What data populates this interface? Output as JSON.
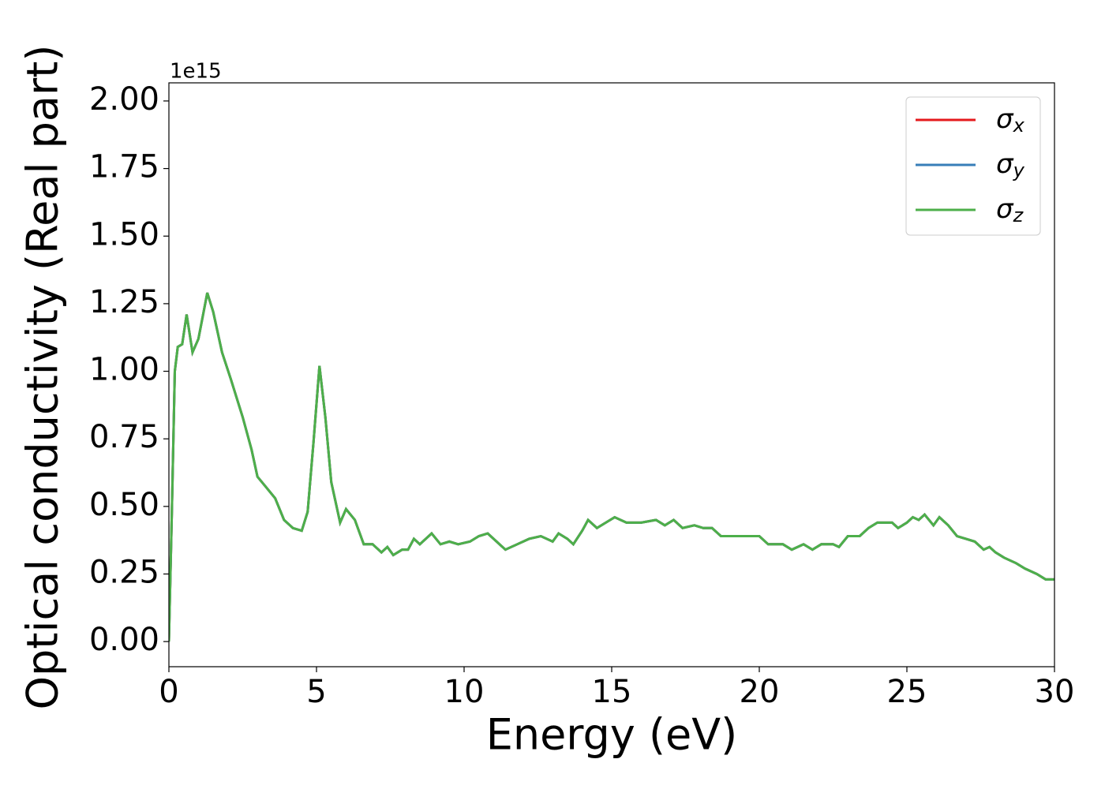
{
  "chart_data": {
    "type": "line",
    "xlabel": "Energy (eV)",
    "ylabel": "Optical conductivity (Real part)",
    "y_offset_text": "1e15",
    "x": [
      0,
      0.1,
      0.2,
      0.3,
      0.45,
      0.6,
      0.8,
      1.0,
      1.3,
      1.5,
      1.8,
      2.1,
      2.5,
      2.8,
      3.0,
      3.3,
      3.6,
      3.9,
      4.2,
      4.5,
      4.7,
      4.9,
      5.1,
      5.3,
      5.5,
      5.8,
      6.0,
      6.3,
      6.6,
      6.9,
      7.2,
      7.4,
      7.6,
      7.9,
      8.1,
      8.3,
      8.5,
      8.9,
      9.2,
      9.5,
      9.8,
      10.2,
      10.5,
      10.8,
      11.1,
      11.4,
      11.8,
      12.2,
      12.6,
      13.0,
      13.2,
      13.5,
      13.7,
      14.0,
      14.2,
      14.5,
      14.8,
      15.1,
      15.5,
      16.0,
      16.5,
      16.8,
      17.1,
      17.4,
      17.8,
      18.1,
      18.4,
      18.7,
      19.2,
      19.6,
      20.0,
      20.3,
      20.8,
      21.1,
      21.5,
      21.8,
      22.1,
      22.5,
      22.7,
      23.0,
      23.4,
      23.7,
      24.0,
      24.5,
      24.7,
      25.0,
      25.2,
      25.4,
      25.6,
      25.9,
      26.1,
      26.4,
      26.7,
      27.0,
      27.3,
      27.6,
      27.8,
      28.0,
      28.3,
      28.7,
      29.0,
      29.4,
      29.7,
      30.0
    ],
    "series": [
      {
        "name": "σx",
        "color": "#e41a1c",
        "values": [
          0,
          0.48,
          1.0,
          1.09,
          1.1,
          1.21,
          1.07,
          1.12,
          1.29,
          1.22,
          1.07,
          0.97,
          0.83,
          0.71,
          0.61,
          0.57,
          0.53,
          0.45,
          0.42,
          0.41,
          0.48,
          0.74,
          1.02,
          0.83,
          0.59,
          0.44,
          0.49,
          0.45,
          0.36,
          0.36,
          0.33,
          0.35,
          0.32,
          0.34,
          0.34,
          0.38,
          0.36,
          0.4,
          0.36,
          0.37,
          0.36,
          0.37,
          0.39,
          0.4,
          0.37,
          0.34,
          0.36,
          0.38,
          0.39,
          0.37,
          0.4,
          0.38,
          0.36,
          0.41,
          0.45,
          0.42,
          0.44,
          0.46,
          0.44,
          0.44,
          0.45,
          0.43,
          0.45,
          0.42,
          0.43,
          0.42,
          0.42,
          0.39,
          0.39,
          0.39,
          0.39,
          0.36,
          0.36,
          0.34,
          0.36,
          0.34,
          0.36,
          0.36,
          0.35,
          0.39,
          0.39,
          0.42,
          0.44,
          0.44,
          0.42,
          0.44,
          0.46,
          0.45,
          0.47,
          0.43,
          0.46,
          0.43,
          0.39,
          0.38,
          0.37,
          0.34,
          0.35,
          0.33,
          0.31,
          0.29,
          0.27,
          0.25,
          0.23,
          0.23
        ]
      },
      {
        "name": "σy",
        "color": "#377eb8",
        "values": [
          0,
          0.48,
          1.0,
          1.09,
          1.1,
          1.21,
          1.07,
          1.12,
          1.29,
          1.22,
          1.07,
          0.97,
          0.83,
          0.71,
          0.61,
          0.57,
          0.53,
          0.45,
          0.42,
          0.41,
          0.48,
          0.74,
          1.02,
          0.83,
          0.59,
          0.44,
          0.49,
          0.45,
          0.36,
          0.36,
          0.33,
          0.35,
          0.32,
          0.34,
          0.34,
          0.38,
          0.36,
          0.4,
          0.36,
          0.37,
          0.36,
          0.37,
          0.39,
          0.4,
          0.37,
          0.34,
          0.36,
          0.38,
          0.39,
          0.37,
          0.4,
          0.38,
          0.36,
          0.41,
          0.45,
          0.42,
          0.44,
          0.46,
          0.44,
          0.44,
          0.45,
          0.43,
          0.45,
          0.42,
          0.43,
          0.42,
          0.42,
          0.39,
          0.39,
          0.39,
          0.39,
          0.36,
          0.36,
          0.34,
          0.36,
          0.34,
          0.36,
          0.36,
          0.35,
          0.39,
          0.39,
          0.42,
          0.44,
          0.44,
          0.42,
          0.44,
          0.46,
          0.45,
          0.47,
          0.43,
          0.46,
          0.43,
          0.39,
          0.38,
          0.37,
          0.34,
          0.35,
          0.33,
          0.31,
          0.29,
          0.27,
          0.25,
          0.23,
          0.23
        ]
      },
      {
        "name": "σz",
        "color": "#4daf4a",
        "values": [
          0,
          0.48,
          1.0,
          1.09,
          1.1,
          1.21,
          1.07,
          1.12,
          1.29,
          1.22,
          1.07,
          0.97,
          0.83,
          0.71,
          0.61,
          0.57,
          0.53,
          0.45,
          0.42,
          0.41,
          0.48,
          0.74,
          1.02,
          0.83,
          0.59,
          0.44,
          0.49,
          0.45,
          0.36,
          0.36,
          0.33,
          0.35,
          0.32,
          0.34,
          0.34,
          0.38,
          0.36,
          0.4,
          0.36,
          0.37,
          0.36,
          0.37,
          0.39,
          0.4,
          0.37,
          0.34,
          0.36,
          0.38,
          0.39,
          0.37,
          0.4,
          0.38,
          0.36,
          0.41,
          0.45,
          0.42,
          0.44,
          0.46,
          0.44,
          0.44,
          0.45,
          0.43,
          0.45,
          0.42,
          0.43,
          0.42,
          0.42,
          0.39,
          0.39,
          0.39,
          0.39,
          0.36,
          0.36,
          0.34,
          0.36,
          0.34,
          0.36,
          0.36,
          0.35,
          0.39,
          0.39,
          0.42,
          0.44,
          0.44,
          0.42,
          0.44,
          0.46,
          0.45,
          0.47,
          0.43,
          0.46,
          0.43,
          0.39,
          0.38,
          0.37,
          0.34,
          0.35,
          0.33,
          0.31,
          0.29,
          0.27,
          0.25,
          0.23,
          0.23
        ]
      }
    ],
    "xlim": [
      0,
      30
    ],
    "xticks": [
      0,
      5,
      10,
      15,
      20,
      25,
      30
    ],
    "ylim": [
      -0.093,
      2.067
    ],
    "yticks": [
      {
        "value": 0,
        "label": "0.00"
      },
      0.25,
      {
        "value": 0.5,
        "label": "0.50"
      },
      0.75,
      {
        "value": 1,
        "label": "1.00"
      },
      1.25,
      {
        "value": 1.5,
        "label": "1.50"
      },
      1.75,
      {
        "value": 2,
        "label": "2.00"
      }
    ],
    "grid": false,
    "legend": "upper right"
  }
}
